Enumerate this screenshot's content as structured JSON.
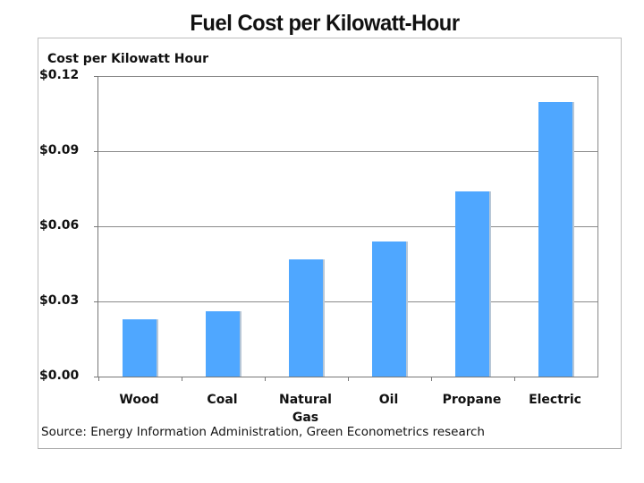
{
  "title": "Fuel Cost per Kilowatt-Hour",
  "y_axis_label": "Cost per Kilowatt Hour",
  "y_ticks": [
    "$0.12",
    "$0.09",
    "$0.06",
    "$0.03",
    "$0.00"
  ],
  "x_labels": [
    "Wood",
    "Coal",
    "Natural Gas",
    "Oil",
    "Propane",
    "Electric"
  ],
  "source": "Source: Energy Information Administration, Green Econometrics research",
  "colors": {
    "bar": "#4fa7ff",
    "grid": "#8a8a8a"
  },
  "chart_data": {
    "type": "bar",
    "title": "Fuel Cost per Kilowatt-Hour",
    "xlabel": "",
    "ylabel": "Cost per Kilowatt Hour",
    "categories": [
      "Wood",
      "Coal",
      "Natural Gas",
      "Oil",
      "Propane",
      "Electric"
    ],
    "values": [
      0.023,
      0.026,
      0.047,
      0.054,
      0.074,
      0.11
    ],
    "ylim": [
      0,
      0.12
    ],
    "yticks": [
      0.0,
      0.03,
      0.06,
      0.09,
      0.12
    ],
    "ytick_format": "$0.00",
    "grid": true,
    "legend": null,
    "annotation": "Source: Energy Information Administration, Green Econometrics research"
  }
}
